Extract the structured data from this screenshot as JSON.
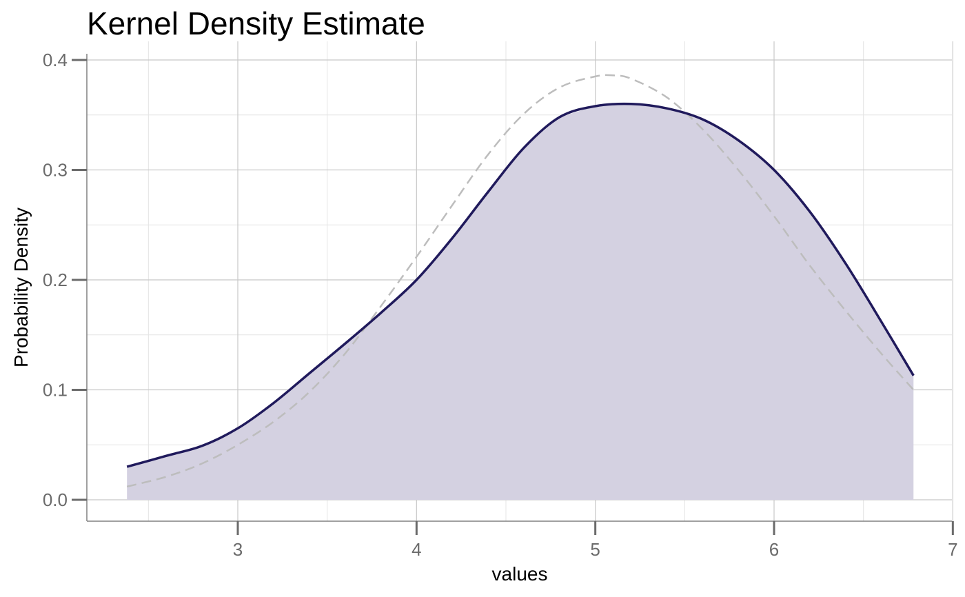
{
  "chart_data": {
    "type": "area",
    "title": "Kernel Density Estimate",
    "xlabel": "values",
    "ylabel": "Probability Density",
    "xlim": [
      2.15,
      7.0
    ],
    "ylim": [
      -0.02,
      0.4
    ],
    "x_ticks": [
      3,
      4,
      5,
      6,
      7
    ],
    "x_tick_labels": [
      "3",
      "4",
      "5",
      "6",
      "7"
    ],
    "y_ticks": [
      0.0,
      0.1,
      0.2,
      0.3,
      0.4
    ],
    "y_tick_labels": [
      "0.0",
      "0.1",
      "0.2",
      "0.3",
      "0.4"
    ],
    "grid": true,
    "colors": {
      "kde": "#201a5c",
      "fill": "#d4d1e1",
      "normal": "#bdbdbd"
    },
    "series": [
      {
        "style": "solid-with-fill",
        "x": [
          2.38,
          2.6,
          2.8,
          3.0,
          3.2,
          3.4,
          3.6,
          3.8,
          4.0,
          4.2,
          4.4,
          4.6,
          4.8,
          5.0,
          5.2,
          5.4,
          5.6,
          5.8,
          6.0,
          6.2,
          6.4,
          6.6,
          6.78
        ],
        "y": [
          0.03,
          0.04,
          0.049,
          0.065,
          0.088,
          0.115,
          0.142,
          0.17,
          0.2,
          0.238,
          0.28,
          0.32,
          0.348,
          0.358,
          0.36,
          0.356,
          0.346,
          0.327,
          0.3,
          0.262,
          0.215,
          0.162,
          0.113
        ]
      },
      {
        "style": "dashed",
        "x": [
          2.38,
          2.6,
          2.8,
          3.0,
          3.2,
          3.4,
          3.6,
          3.8,
          4.0,
          4.2,
          4.4,
          4.6,
          4.8,
          5.0,
          5.1,
          5.2,
          5.4,
          5.6,
          5.8,
          6.0,
          6.2,
          6.4,
          6.6,
          6.78
        ],
        "y": [
          0.012,
          0.021,
          0.033,
          0.05,
          0.071,
          0.098,
          0.133,
          0.176,
          0.221,
          0.268,
          0.314,
          0.351,
          0.375,
          0.385,
          0.386,
          0.383,
          0.366,
          0.337,
          0.3,
          0.258,
          0.213,
          0.172,
          0.133,
          0.1
        ]
      }
    ]
  }
}
